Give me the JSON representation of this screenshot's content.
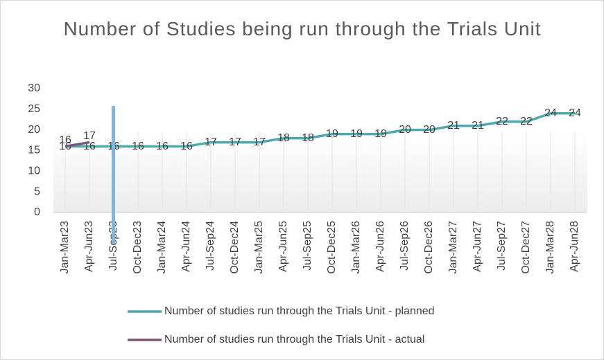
{
  "chart_data": {
    "type": "line",
    "title": "Number of Studies being run through the Trials Unit",
    "categories": [
      "Jan-Mar23",
      "Apr-Jun23",
      "Jul-Sep23",
      "Oct-Dec23",
      "Jan-Mar24",
      "Apr-Jun24",
      "Jul-Sep24",
      "Oct-Dec24",
      "Jan-Mar25",
      "Apr-Jun25",
      "Jul-Sep25",
      "Oct-Dec25",
      "Jan-Mar26",
      "Apr-Jun26",
      "Jul-Sep26",
      "Oct-Dec26",
      "Jan-Mar27",
      "Apr-Jun27",
      "Jul-Sep27",
      "Oct-Dec27",
      "Jan-Mar28",
      "Apr-Jun28"
    ],
    "series": [
      {
        "name": "Number of studies run through the Trials Unit - planned",
        "color": "#4ea9ae",
        "values": [
          16,
          16,
          16,
          16,
          16,
          16,
          17,
          17,
          17,
          18,
          18,
          19,
          19,
          19,
          20,
          20,
          21,
          21,
          22,
          22,
          24,
          24
        ]
      },
      {
        "name": "Number of studies run through the Trials Unit - actual",
        "color": "#7a5679",
        "values": [
          16,
          17,
          null,
          null,
          null,
          null,
          null,
          null,
          null,
          null,
          null,
          null,
          null,
          null,
          null,
          null,
          null,
          null,
          null,
          null,
          null,
          null
        ]
      }
    ],
    "ylim": [
      0,
      30
    ],
    "yticks": [
      0,
      5,
      10,
      15,
      20,
      25,
      30
    ],
    "grid": true
  }
}
